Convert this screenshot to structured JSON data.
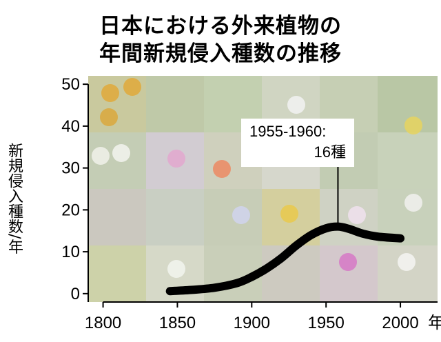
{
  "chart_data": {
    "type": "line",
    "title_lines": [
      "日本における外来植物の",
      "年間新規侵入種数の推移"
    ],
    "ylabel": "新規侵入種数/年",
    "x_unit": "年",
    "xlim": [
      1790,
      2025
    ],
    "ylim": [
      -2,
      52
    ],
    "x_ticks": [
      1800,
      1850,
      1900,
      1950,
      2000
    ],
    "y_ticks": [
      0,
      10,
      20,
      30,
      40,
      50
    ],
    "grid": false,
    "background": "plant photo collage",
    "series": [
      {
        "x": [
          1845,
          1860,
          1875,
          1890,
          1900,
          1910,
          1920,
          1930,
          1940,
          1950,
          1958,
          1965,
          1975,
          1985,
          2000
        ],
        "y": [
          0.6,
          0.9,
          1.4,
          2.5,
          4.0,
          6.0,
          8.5,
          11.5,
          14.0,
          15.6,
          16.0,
          15.5,
          14.3,
          13.6,
          13.2
        ],
        "color": "#000000"
      }
    ],
    "annotation": {
      "line1": "1955-1960:",
      "line2": "16種",
      "x": 1958,
      "y": 16
    }
  }
}
